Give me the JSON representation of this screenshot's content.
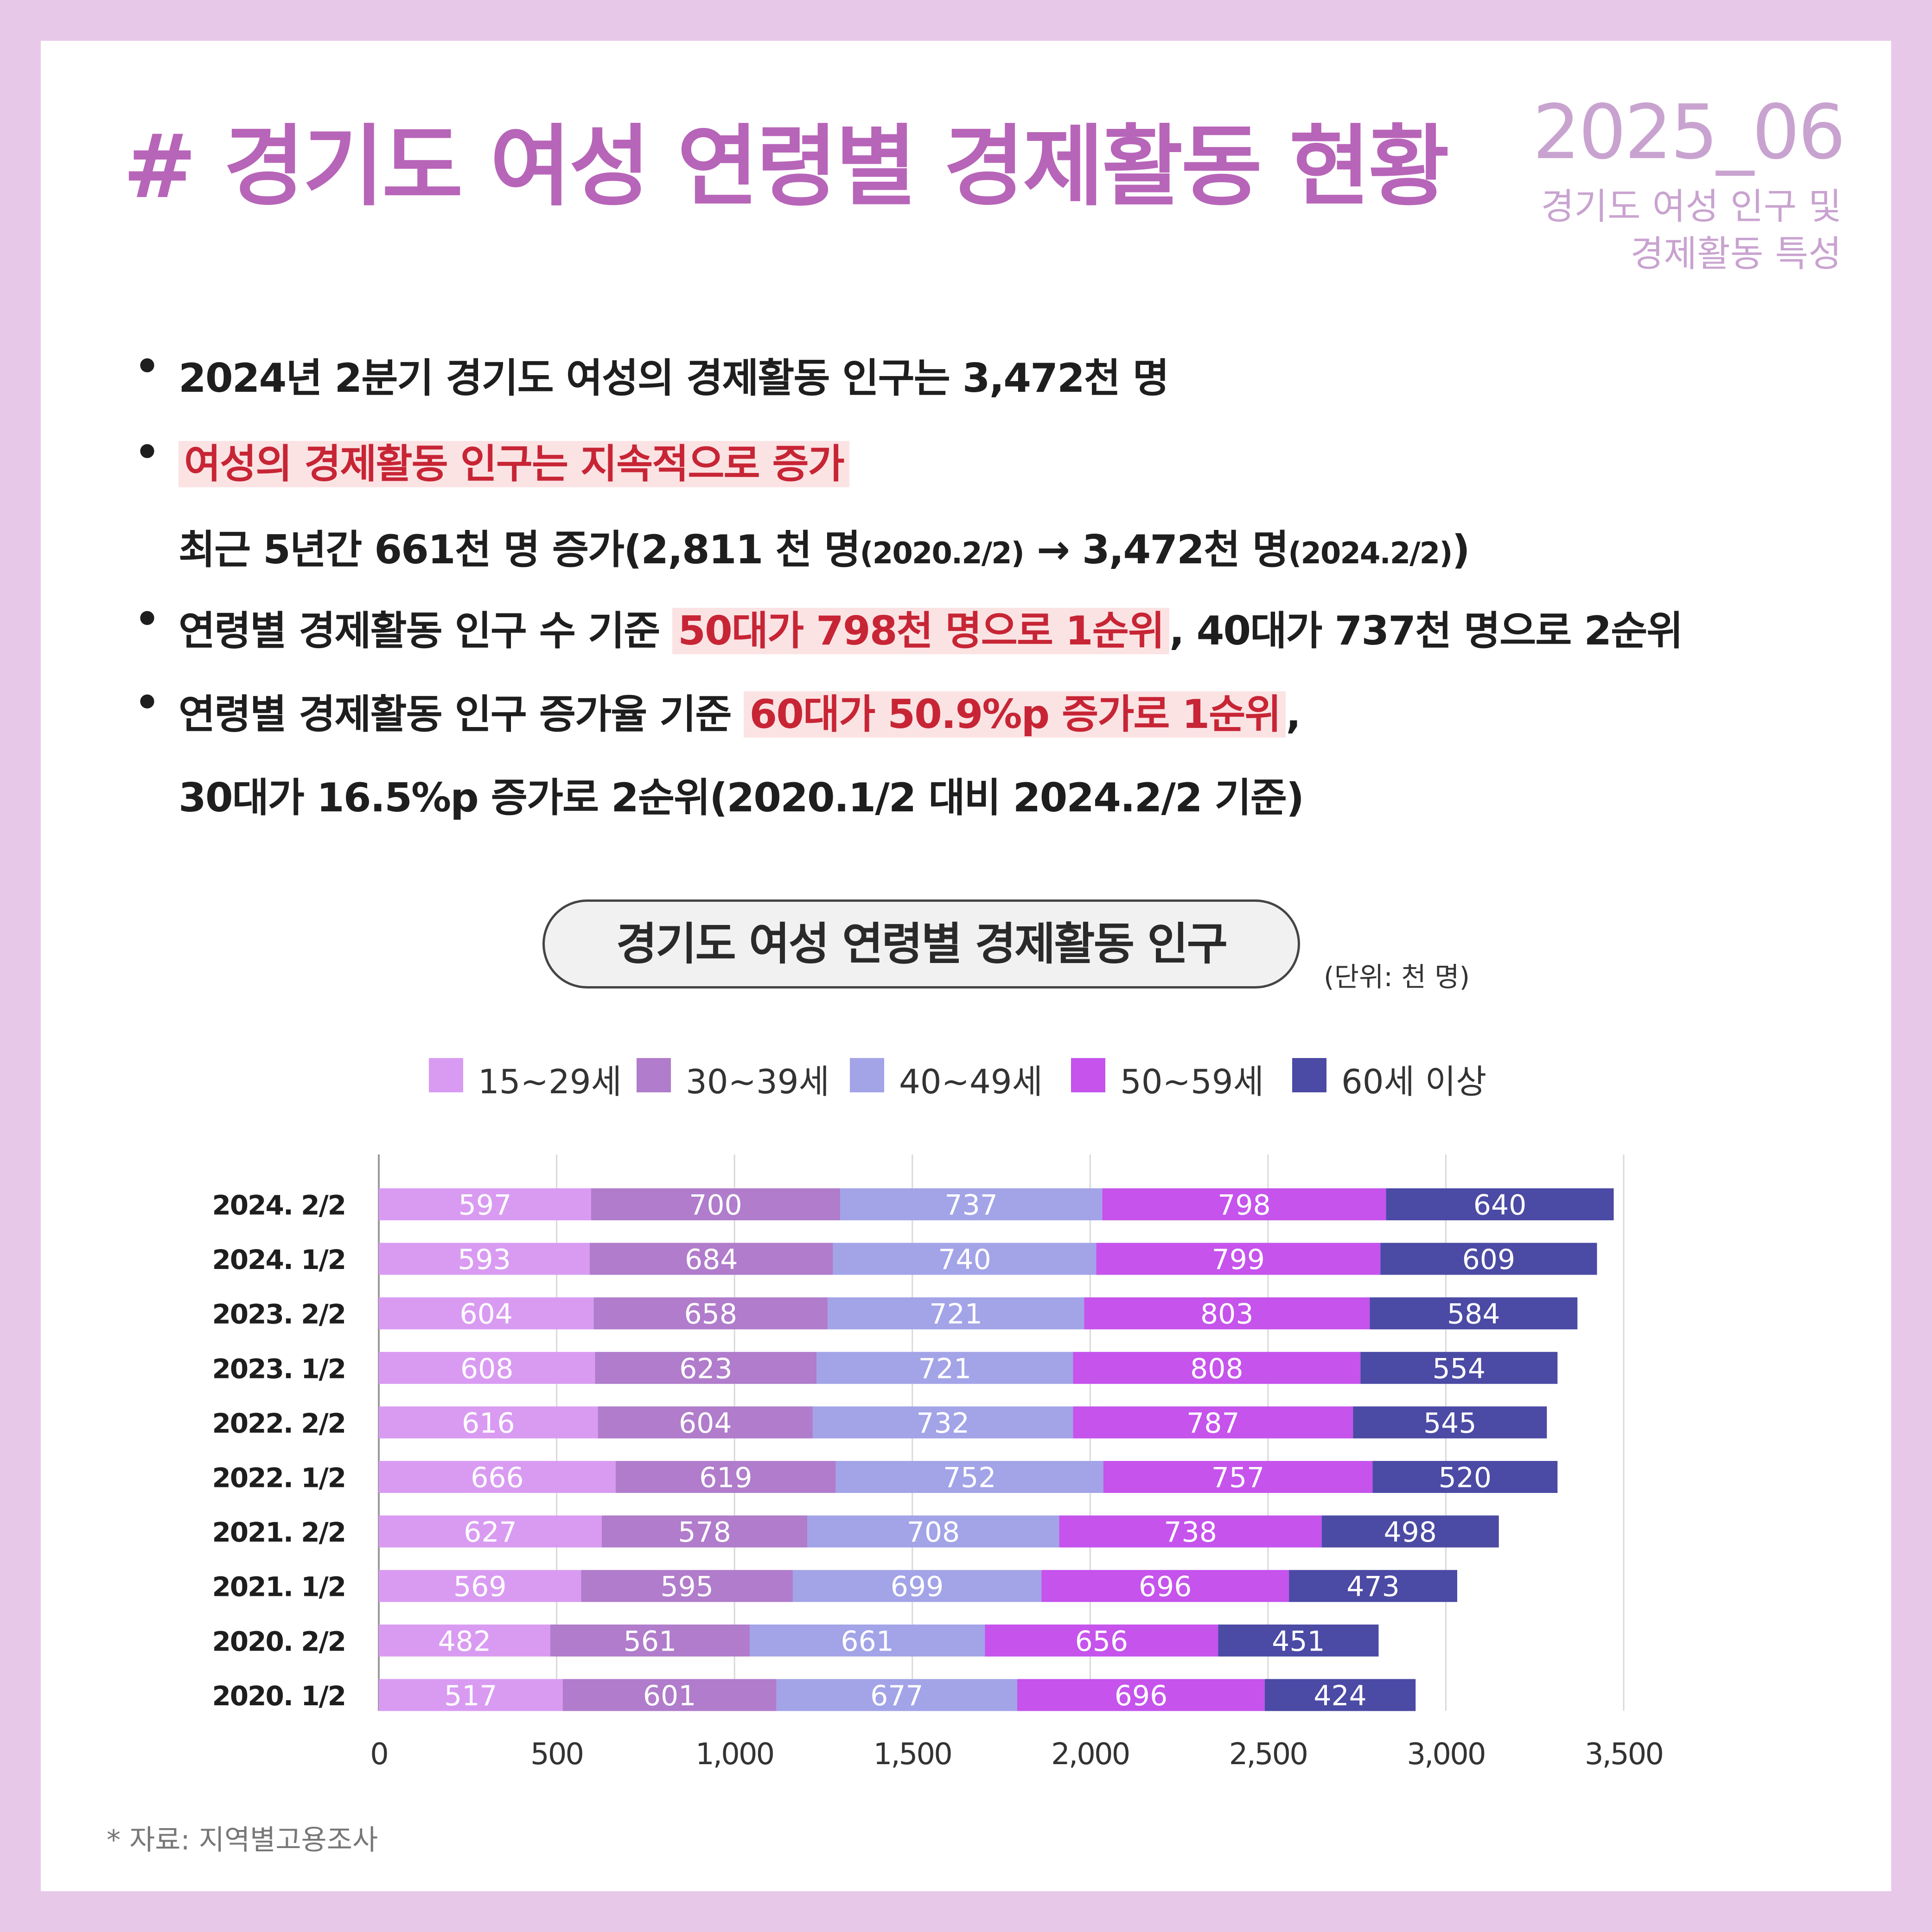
{
  "header": {
    "title": "# 경기도 여성 연령별 경제활동 현황",
    "issue": "2025_06",
    "subtitle_line1": "경기도 여성 인구 및",
    "subtitle_line2": "경제활동 특성"
  },
  "bullets": {
    "b1": "2024년 2분기 경기도 여성의 경제활동 인구는 3,472천 명",
    "b2_hl": "여성의 경제활동 인구는 지속적으로 증가",
    "b2_cont_a": "최근 5년간 661천 명 증가(2,811 천 명",
    "b2_cont_b": "(2020.2/2)",
    "b2_cont_c": " → 3,472천 명",
    "b2_cont_d": "(2024.2/2)",
    "b2_cont_e": ")",
    "b3_a": "연령별 경제활동 인구 수 기준 ",
    "b3_hl": "50대가 798천 명으로 1순위",
    "b3_b": ", 40대가 737천 명으로 2순위",
    "b4_a": "연령별 경제활동 인구 증가율 기준 ",
    "b4_hl": "60대가 50.9%p 증가로 1순위",
    "b4_b": ",",
    "b4_cont": "30대가 16.5%p 증가로 2순위(2020.1/2 대비 2024.2/2 기준)"
  },
  "chart_title": "경기도 여성 연령별 경제활동 인구",
  "unit": "(단위: 천 명)",
  "source": "* 자료: 지역별고용조사",
  "colors": {
    "bg": "#e8c8e8",
    "title": "#b765b8",
    "accent": "#c9a3d0",
    "highlight_bg": "#fbe3e4",
    "highlight_text": "#c72535",
    "series": [
      "#d99bf2",
      "#b07ccb",
      "#a3a3e8",
      "#c553ec",
      "#4b4aa5"
    ]
  },
  "chart_data": {
    "type": "bar",
    "orientation": "horizontal",
    "stacked": true,
    "title": "경기도 여성 연령별 경제활동 인구",
    "categories": [
      "2024. 2/2",
      "2024. 1/2",
      "2023. 2/2",
      "2023. 1/2",
      "2022. 2/2",
      "2022. 1/2",
      "2021. 2/2",
      "2021. 1/2",
      "2020. 2/2",
      "2020. 1/2"
    ],
    "series": [
      {
        "name": "15~29세",
        "values": [
          597,
          593,
          604,
          608,
          616,
          666,
          627,
          569,
          482,
          517
        ]
      },
      {
        "name": "30~39세",
        "values": [
          700,
          684,
          658,
          623,
          604,
          619,
          578,
          595,
          561,
          601
        ]
      },
      {
        "name": "40~49세",
        "values": [
          737,
          740,
          721,
          721,
          732,
          752,
          708,
          699,
          661,
          677
        ]
      },
      {
        "name": "50~59세",
        "values": [
          798,
          799,
          803,
          808,
          787,
          757,
          738,
          696,
          656,
          696
        ]
      },
      {
        "name": "60세 이상",
        "values": [
          640,
          609,
          584,
          554,
          545,
          520,
          498,
          473,
          451,
          424
        ]
      }
    ],
    "xlim": [
      0,
      3500
    ],
    "xticks": [
      0,
      500,
      1000,
      1500,
      2000,
      2500,
      3000,
      3500
    ],
    "xtick_labels": [
      "0",
      "500",
      "1,000",
      "1,500",
      "2,000",
      "2,500",
      "3,000",
      "3,500"
    ],
    "grid": true,
    "legend_position": "top",
    "data_labels": true
  }
}
